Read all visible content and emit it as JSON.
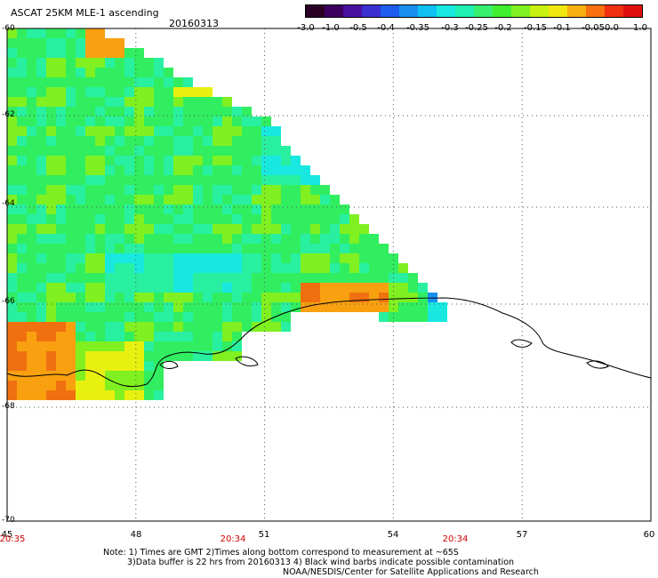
{
  "header": {
    "title": "ASCAT 25KM MLE-1 ascending",
    "date": "20160313"
  },
  "colorbar": {
    "colors": [
      "#2a0026",
      "#3c0060",
      "#4a10a0",
      "#3a30d0",
      "#1f5cf0",
      "#1890f0",
      "#10c0f0",
      "#18e8e0",
      "#20f0b0",
      "#38f070",
      "#40f030",
      "#80f020",
      "#c8f010",
      "#f0e810",
      "#f8b010",
      "#f87010",
      "#f03010",
      "#e01010"
    ],
    "labels": [
      "-3.0",
      "-1.0",
      "-0.5",
      "-0.4",
      "-0.35",
      "-0.3",
      "-0.25",
      "-0.2",
      "-0.15",
      "-0.1",
      "-0.05",
      "0.0",
      "1.0"
    ]
  },
  "axes": {
    "lat_labels": [
      "-60",
      "-62",
      "-64",
      "-66",
      "-68",
      "-70"
    ],
    "lon_labels": [
      "45",
      "48",
      "51",
      "54",
      "57",
      "60"
    ],
    "time_labels": [
      "20:35",
      "20:34",
      "20:34"
    ]
  },
  "map_data": {
    "lon_range": [
      45,
      60
    ],
    "lat_range": [
      -60,
      -70
    ],
    "grid": "dotted",
    "palette": {
      "teal": "#18e8e0",
      "green": "#30ee60",
      "lime": "#80f020",
      "yellow": "#e8f010",
      "orange": "#f8a010",
      "dark_orange": "#f07010",
      "blue": "#1890f0",
      "mint": "#28f0a0"
    }
  },
  "notes": {
    "line1": "Note: 1) Times are GMT 2)Times along bottom correspond to measurement at ~65S",
    "line2": "3)Data buffer is 22 hrs from 20160313 4) Black wind barbs indicate possible contamination",
    "line3": "NOAA/NESDIS/Center for Satellite Applications and Research"
  }
}
